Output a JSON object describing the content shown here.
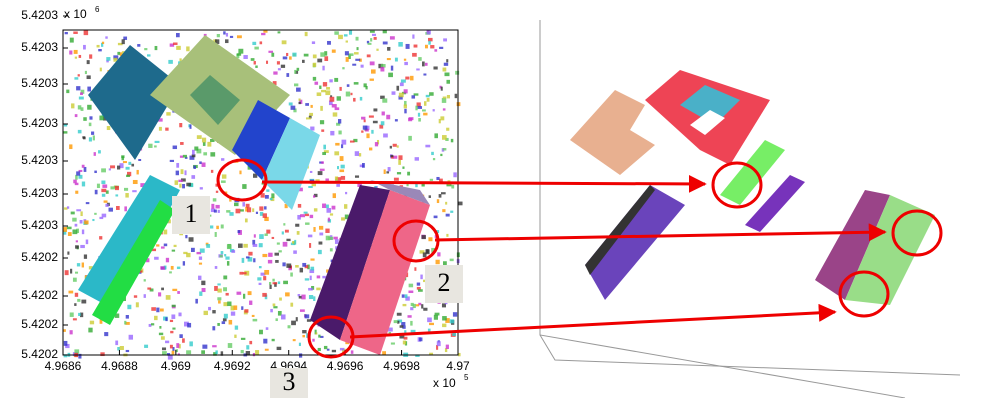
{
  "left_plot": {
    "y_multiplier": "x 10",
    "y_exponent": "6",
    "yticks": [
      "5.4203",
      "5.4203",
      "5.4203",
      "5.4203",
      "5.4203",
      "5.4203",
      "5.4203",
      "5.4202",
      "5.4202",
      "5.4202",
      "5.4202"
    ],
    "xticks": [
      "4.9686",
      "4.9688",
      "4.969",
      "4.9692",
      "4.9694",
      "4.9696",
      "4.9698",
      "4.97"
    ],
    "x_multiplier": "x 10",
    "x_exponent": "5"
  },
  "labels": [
    "1",
    "2",
    "3"
  ]
}
